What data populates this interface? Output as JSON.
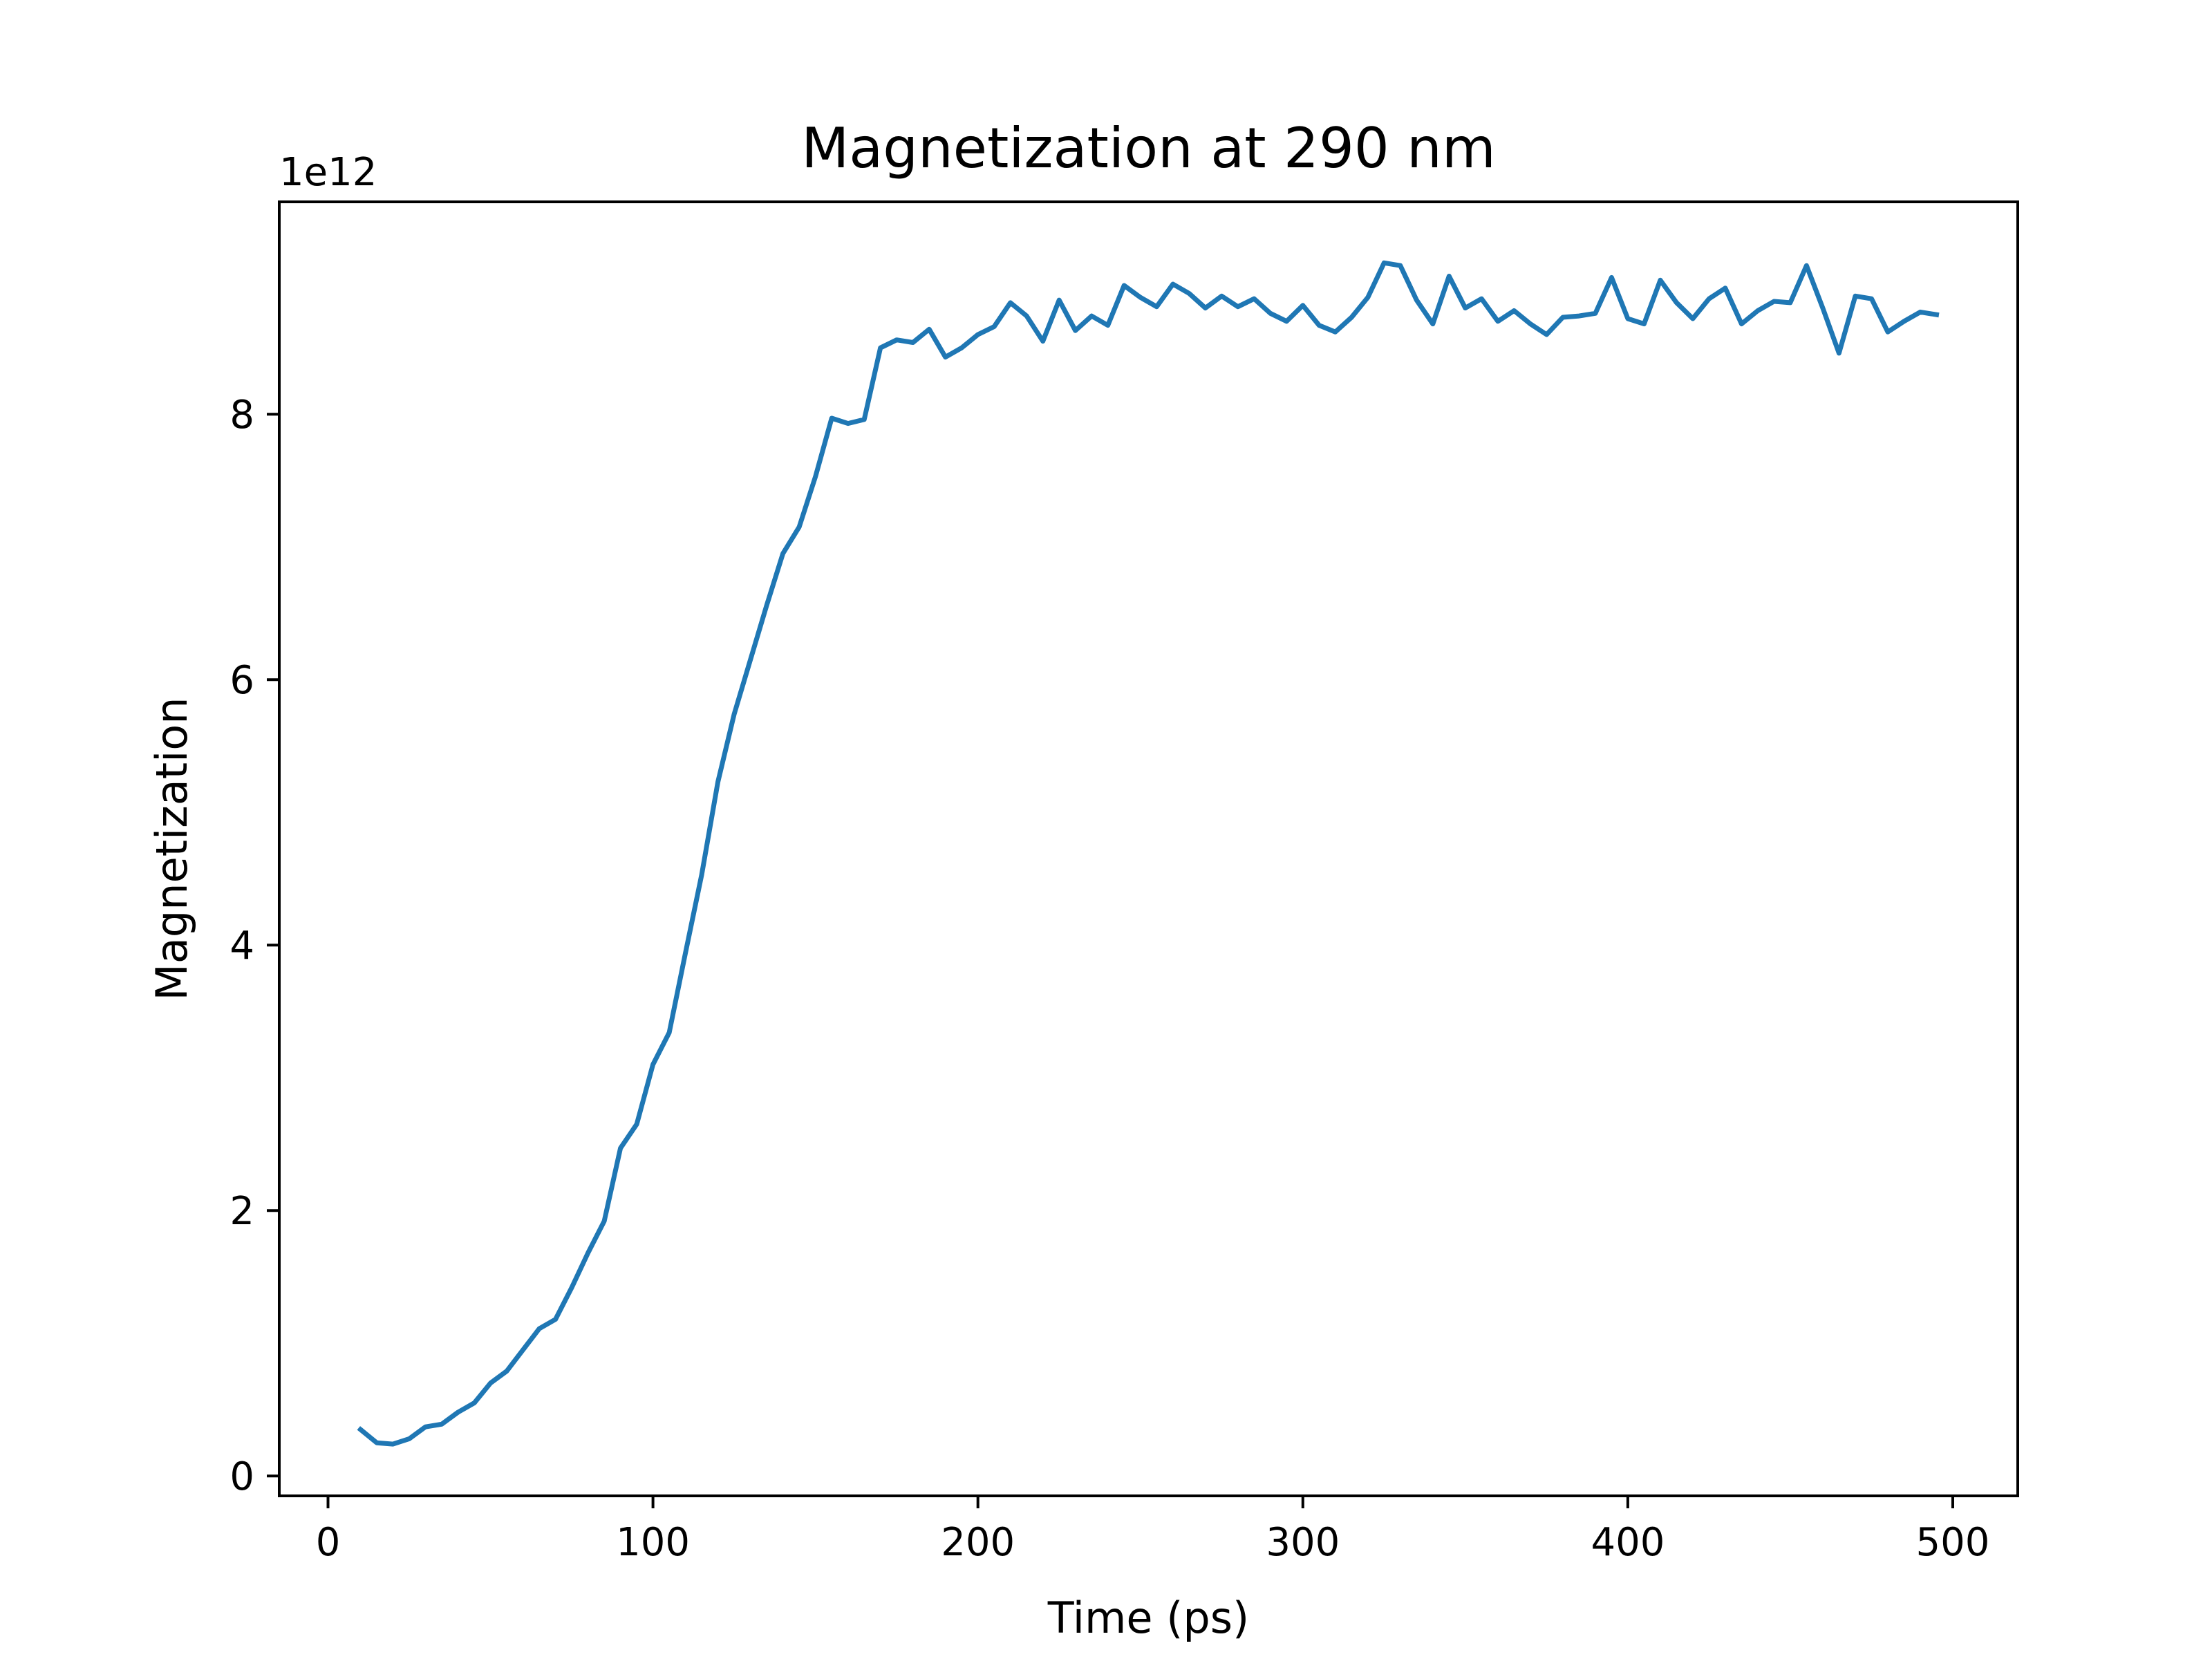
{
  "chart_data": {
    "type": "line",
    "title": "Magnetization at 290 nm",
    "xlabel": "Time (ps)",
    "ylabel": "Magnetization",
    "y_offset_label": "1e12",
    "xlim": [
      -15,
      520
    ],
    "ylim": [
      -0.15,
      9.6
    ],
    "y_scale_multiplier": 1000000000000.0,
    "xticks": [
      0,
      100,
      200,
      300,
      400,
      500
    ],
    "xtick_labels": [
      "0",
      "100",
      "200",
      "300",
      "400",
      "500"
    ],
    "yticks": [
      0,
      2,
      4,
      6,
      8
    ],
    "ytick_labels": [
      "0",
      "2",
      "4",
      "6",
      "8"
    ],
    "grid": false,
    "legend": "none",
    "line_color": "#1f77b4",
    "series": [
      {
        "x": [
          10,
          15,
          20,
          25,
          30,
          35,
          40,
          45,
          50,
          55,
          60,
          65,
          70,
          75,
          80,
          85,
          90,
          95,
          100,
          105,
          110,
          115,
          120,
          125,
          130,
          135,
          140,
          145,
          150,
          155,
          160,
          165,
          170,
          175,
          180,
          185,
          190,
          195,
          200,
          205,
          210,
          215,
          220,
          225,
          230,
          235,
          240,
          245,
          250,
          255,
          260,
          265,
          270,
          275,
          280,
          285,
          290,
          295,
          300,
          305,
          310,
          315,
          320,
          325,
          330,
          335,
          340,
          345,
          350,
          355,
          360,
          365,
          370,
          375,
          380,
          385,
          390,
          395,
          400,
          405,
          410,
          415,
          420,
          425,
          430,
          435,
          440,
          445,
          450,
          455,
          460,
          465,
          470,
          475,
          480,
          485,
          490,
          495
        ],
        "y": [
          0.35,
          0.25,
          0.24,
          0.28,
          0.37,
          0.39,
          0.48,
          0.55,
          0.7,
          0.79,
          0.95,
          1.11,
          1.18,
          1.42,
          1.68,
          1.92,
          2.47,
          2.65,
          3.1,
          3.34,
          3.94,
          4.53,
          5.23,
          5.74,
          6.15,
          6.56,
          6.95,
          7.15,
          7.53,
          7.97,
          7.93,
          7.96,
          8.5,
          8.56,
          8.54,
          8.64,
          8.43,
          8.5,
          8.6,
          8.66,
          8.84,
          8.74,
          8.55,
          8.86,
          8.63,
          8.74,
          8.67,
          8.97,
          8.88,
          8.81,
          8.98,
          8.91,
          8.8,
          8.89,
          8.81,
          8.87,
          8.76,
          8.7,
          8.82,
          8.67,
          8.62,
          8.73,
          8.88,
          9.14,
          9.12,
          8.86,
          8.68,
          9.04,
          8.8,
          8.87,
          8.7,
          8.78,
          8.68,
          8.6,
          8.73,
          8.74,
          8.76,
          9.03,
          8.72,
          8.68,
          9.01,
          8.84,
          8.72,
          8.87,
          8.95,
          8.68,
          8.78,
          8.85,
          8.84,
          9.12,
          8.8,
          8.46,
          8.89,
          8.87,
          8.62,
          8.7,
          8.77,
          8.75
        ]
      }
    ]
  }
}
